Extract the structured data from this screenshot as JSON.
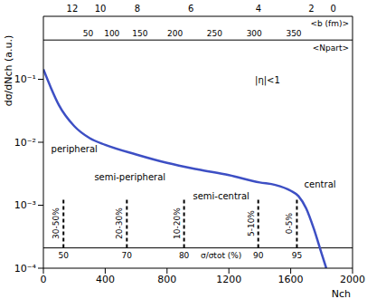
{
  "chart_data": {
    "type": "line",
    "x": [
      0,
      50,
      100,
      200,
      300,
      400,
      600,
      800,
      1000,
      1200,
      1400,
      1500,
      1600,
      1650,
      1700,
      1750,
      1800,
      1830
    ],
    "values": [
      0.144,
      0.072,
      0.039,
      0.018,
      0.0116,
      0.0091,
      0.0064,
      0.0047,
      0.0037,
      0.003,
      0.0023,
      0.0021,
      0.0017,
      0.0014,
      0.00089,
      0.00042,
      0.00017,
      0.0001
    ],
    "color": "#3d4fc4",
    "xlabel": "Nch",
    "ylabel": "dσ/dNch (a.u.)",
    "xlim": [
      0,
      2000
    ],
    "xticks": [
      0,
      400,
      800,
      1200,
      1600,
      2000
    ],
    "ylim": [
      0.0001,
      1
    ],
    "yticks": [
      {
        "value": 0.0001,
        "label": "10⁻⁴"
      },
      {
        "value": 0.001,
        "label": "10⁻³"
      },
      {
        "value": 0.01,
        "label": "10⁻²"
      },
      {
        "value": 0.1,
        "label": "10⁻¹"
      }
    ],
    "log": "y",
    "annotations": [
      {
        "text": "peripheral",
        "x": 200,
        "y": 0.008
      },
      {
        "text": "semi-peripheral",
        "x": 560,
        "y": 0.0028
      },
      {
        "text": "semi-central",
        "x": 1150,
        "y": 0.0014
      },
      {
        "text": "central",
        "x": 1790,
        "y": 0.0022
      },
      {
        "text": "|η|<1",
        "x": 1450,
        "y": 0.1
      }
    ],
    "b_axis": {
      "label": "<b (fm)>",
      "ticks": [
        {
          "value": 187,
          "label": "12"
        },
        {
          "value": 369,
          "label": "10"
        },
        {
          "value": 608,
          "label": "8"
        },
        {
          "value": 955,
          "label": "6"
        },
        {
          "value": 1392,
          "label": "4"
        },
        {
          "value": 1733,
          "label": "2"
        },
        {
          "value": 1875,
          "label": "0"
        }
      ]
    },
    "npart_axis": {
      "label": "<Npart>",
      "y": 0.42,
      "ticks": [
        {
          "value": 290,
          "label": "50"
        },
        {
          "value": 443,
          "label": "100"
        },
        {
          "value": 625,
          "label": "150"
        },
        {
          "value": 852,
          "label": "200"
        },
        {
          "value": 1108,
          "label": "250"
        },
        {
          "value": 1364,
          "label": "300"
        },
        {
          "value": 1620,
          "label": "350"
        }
      ]
    },
    "centrality_axis": {
      "label": "σ/σtot (%)",
      "y": 0.00021,
      "ticks": [
        {
          "value": 130,
          "label": "50"
        },
        {
          "value": 540,
          "label": "70"
        },
        {
          "value": 910,
          "label": "80"
        },
        {
          "value": 1390,
          "label": "90"
        },
        {
          "value": 1640,
          "label": "95"
        }
      ]
    },
    "centrality_classes": [
      {
        "label": "30-50%",
        "x": 130
      },
      {
        "label": "20-30%",
        "x": 540
      },
      {
        "label": "10-20%",
        "x": 910
      },
      {
        "label": "5-10%",
        "x": 1390
      },
      {
        "label": "0-5%",
        "x": 1640
      }
    ]
  }
}
